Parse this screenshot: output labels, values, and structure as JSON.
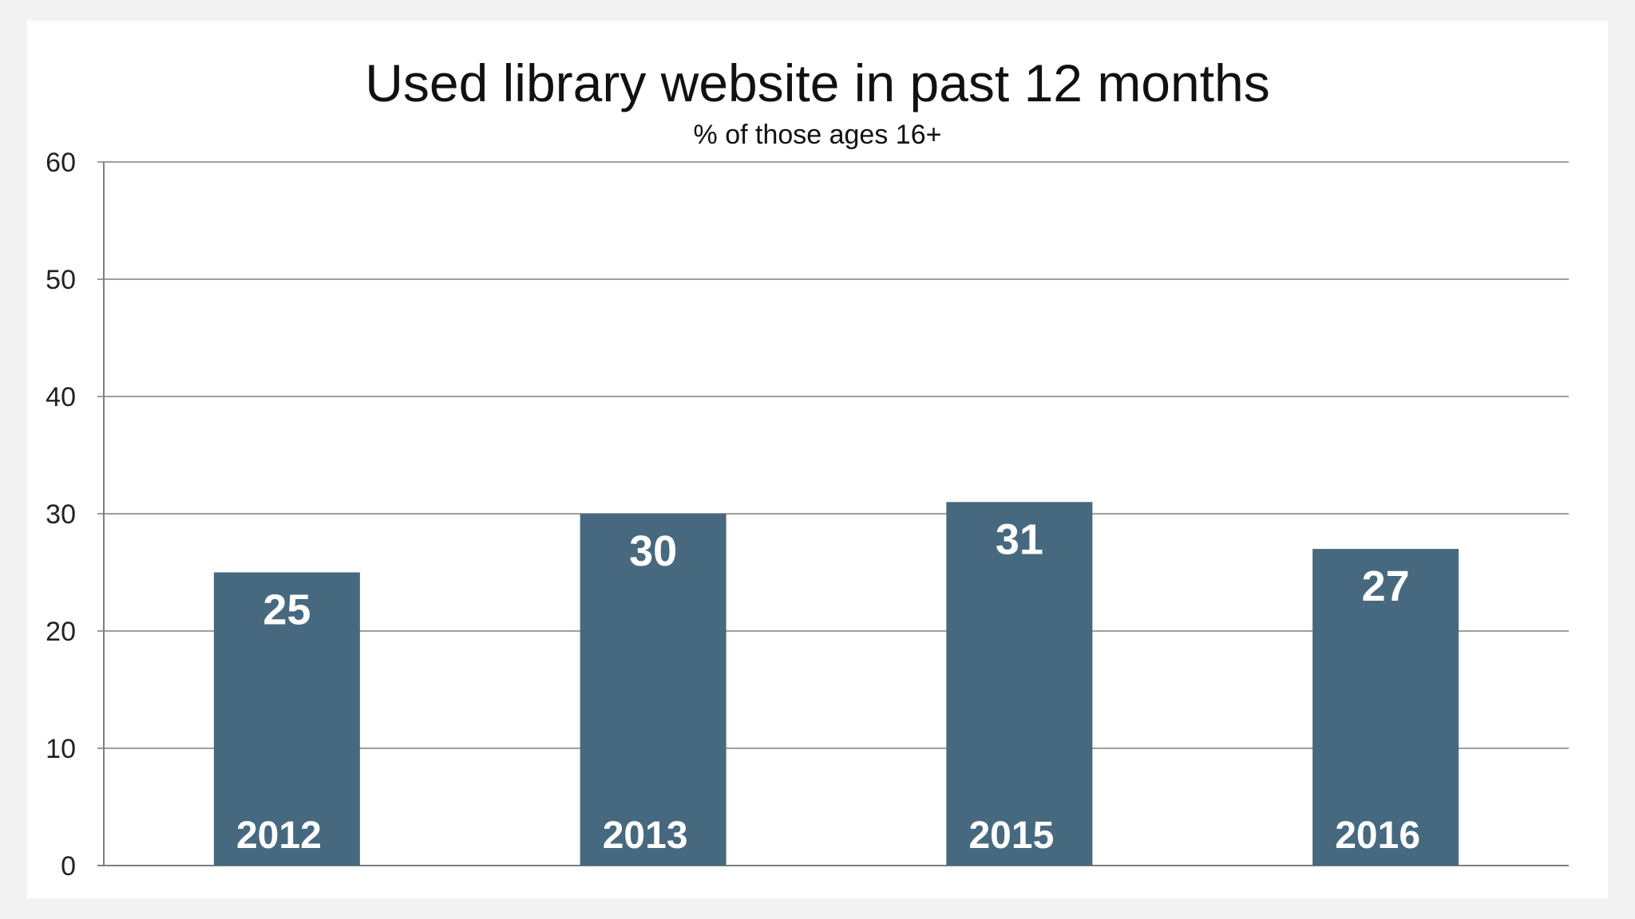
{
  "chart_data": {
    "type": "bar",
    "title": "Used library website in past 12 months",
    "subtitle": "% of those ages 16+",
    "categories": [
      "2012",
      "2013",
      "2015",
      "2016"
    ],
    "values": [
      25,
      30,
      31,
      27
    ],
    "ylim": [
      0,
      60
    ],
    "yticks": [
      "0",
      "10",
      "20",
      "30",
      "40",
      "50",
      "60"
    ],
    "grid": true,
    "legend": "none",
    "bar_color": "#46697f",
    "label_color": "#ffffff"
  }
}
